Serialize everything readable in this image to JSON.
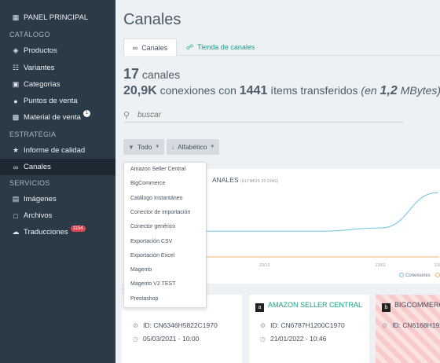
{
  "sidebar": {
    "top_item": {
      "label": "PANEL PRINCIPAL",
      "icon": "grid-icon"
    },
    "sections": [
      {
        "label": "CATÁLOGO",
        "items": [
          {
            "label": "Productos",
            "icon": "tags-icon"
          },
          {
            "label": "Variantes",
            "icon": "variants-icon"
          },
          {
            "label": "Categorías",
            "icon": "folders-icon"
          },
          {
            "label": "Puntos de venta",
            "icon": "map-pin-icon"
          },
          {
            "label": "Material de venta",
            "icon": "bag-icon",
            "badge": "1"
          }
        ]
      },
      {
        "label": "ESTRATEGIA",
        "items": [
          {
            "label": "Informe de calidad",
            "icon": "trophy-icon"
          },
          {
            "label": "Canales",
            "icon": "link-icon",
            "active": true
          }
        ]
      },
      {
        "label": "SERVICIOS",
        "items": [
          {
            "label": "Imágenes",
            "icon": "image-icon"
          },
          {
            "label": "Archivos",
            "icon": "folder-icon"
          },
          {
            "label": "Traducciones",
            "icon": "cloud-icon",
            "badge": "1154"
          }
        ]
      }
    ]
  },
  "main": {
    "title": "Canales",
    "tabs": [
      {
        "label": "Canales",
        "icon": "link-icon",
        "active": true
      },
      {
        "label": "Tienda de canales",
        "icon": "cart-icon"
      }
    ],
    "stats": {
      "count": "17",
      "count_label": "canales",
      "connections": "20,9K",
      "connections_label": "conexiones con",
      "items": "1441",
      "items_label": "ítems transferidos",
      "size_prefix": "(en",
      "size": "1,2",
      "size_unit": "MBytes)"
    },
    "search": {
      "placeholder": "buscar"
    },
    "filters": [
      {
        "label": "Todo",
        "icon": "funnel-icon"
      },
      {
        "label": "Alfabético",
        "icon": "sort-arrow-icon"
      }
    ],
    "chart_panel": {
      "title_fragment": "ANALES",
      "subtitle": "(ÚLTIMOS 30 DÍAS)",
      "legend": [
        "Conexiones",
        "Í"
      ]
    },
    "cards": [
      {
        "name": "",
        "id_label": "ID: CN6346H5822C1970",
        "date": "05/03/2021 - 10:00"
      },
      {
        "name": "AMAZON SELLER CENTRAL",
        "logo": "a",
        "id_label": "ID: CN6787H1200C1970",
        "date": "21/01/2022 - 10:46"
      },
      {
        "name": "BIGCOMMERC",
        "logo": "b",
        "id_label": "ID: CN6168H192"
      }
    ],
    "dropdown": {
      "items": [
        "Amazon Seller Central",
        "BigCommerce",
        "Catálogo Instantáneo",
        "Conector de importación",
        "Conector genérico",
        "Exportación CSV",
        "Exportación Excel",
        "Magento",
        "Magento V2 TEST",
        "Prestashop"
      ]
    }
  },
  "chart_data": {
    "type": "line",
    "categories": [
      "",
      "23/12",
      "",
      "13/01",
      "13/0"
    ],
    "series": [
      {
        "name": "Conexiones",
        "color": "#6cc3e0",
        "values": [
          8,
          8,
          8,
          9,
          20
        ]
      },
      {
        "name": "Í",
        "color": "#f2b66d",
        "values": [
          0,
          0,
          0,
          0,
          0
        ]
      }
    ],
    "legend_position": "bottom-right"
  }
}
